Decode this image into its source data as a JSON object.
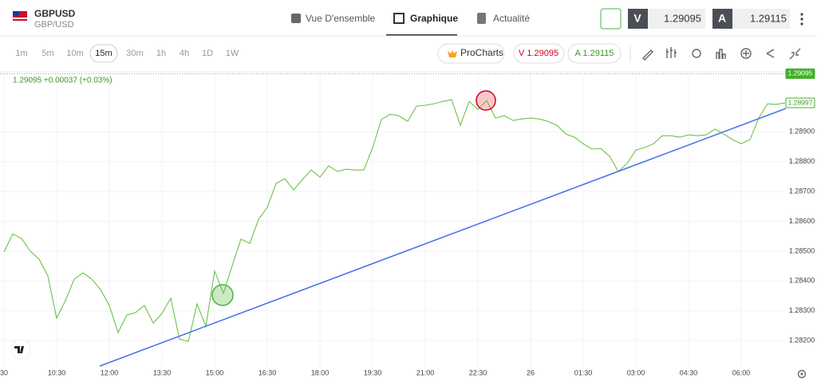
{
  "header": {
    "symbol": "GBPUSD",
    "pair": "GBP/USD",
    "tabs": [
      "Vue D'ensemble",
      "Graphique",
      "Actualité"
    ],
    "active_tab": 1,
    "sell_label": "V",
    "sell_price": "1.29095",
    "buy_label": "A",
    "buy_price": "1.29115"
  },
  "toolbar": {
    "timeframes": [
      "1m",
      "5m",
      "10m",
      "15m",
      "30m",
      "1h",
      "4h",
      "1D",
      "1W"
    ],
    "active_timeframe": 3,
    "procharts": "ProCharts",
    "sell_quote": "V 1.29095",
    "buy_quote": "A 1.29115"
  },
  "chart_data": {
    "type": "line",
    "info": "1.29095 +0.00037 (+0.03%)",
    "color": "#6cc24a",
    "categories": [
      "30",
      null,
      null,
      null,
      null,
      null,
      "10:30",
      null,
      null,
      null,
      null,
      null,
      "12:00",
      null,
      null,
      null,
      null,
      null,
      "13:30",
      null,
      null,
      null,
      null,
      null,
      "15:00",
      null,
      null,
      null,
      null,
      null,
      "16:30",
      null,
      null,
      null,
      null,
      null,
      "18:00",
      null,
      null,
      null,
      null,
      null,
      "19:30",
      null,
      null,
      null,
      null,
      null,
      "21:00",
      null,
      null,
      null,
      null,
      null,
      "22:30",
      null,
      null,
      null,
      null,
      null,
      "26",
      null,
      null,
      null,
      null,
      null,
      "01:30",
      null,
      null,
      null,
      null,
      null,
      "03:00",
      null,
      null,
      null,
      null,
      null,
      "04:30",
      null,
      null,
      null,
      null,
      null,
      "06:00",
      null,
      null,
      null,
      null,
      null
    ],
    "values": [
      1.28497,
      1.28558,
      1.28542,
      1.285,
      1.28473,
      1.28417,
      1.28275,
      1.28334,
      1.28406,
      1.28427,
      1.28406,
      1.28371,
      1.28318,
      1.28227,
      1.28286,
      1.28294,
      1.28318,
      1.28259,
      1.28291,
      1.28342,
      1.28205,
      1.28197,
      1.28323,
      1.28248,
      1.28433,
      1.28358,
      1.28451,
      1.2854,
      1.28526,
      1.28606,
      1.28647,
      1.28727,
      1.28743,
      1.28705,
      1.2874,
      1.28772,
      1.28748,
      1.28786,
      1.28767,
      1.28775,
      1.28772,
      1.28772,
      1.28847,
      1.28941,
      1.28959,
      1.28954,
      1.28935,
      1.28986,
      1.28989,
      1.28994,
      1.29002,
      1.29008,
      1.28922,
      1.29002,
      1.28975,
      1.29005,
      1.28946,
      1.28954,
      1.28938,
      1.28943,
      1.28946,
      1.28943,
      1.28935,
      1.28922,
      1.28893,
      1.28882,
      1.2886,
      1.28842,
      1.28844,
      1.28818,
      1.28767,
      1.28794,
      1.28839,
      1.28847,
      1.2886,
      1.28887,
      1.28887,
      1.28882,
      1.2889,
      1.28887,
      1.2889,
      1.28909,
      1.28893,
      1.28874,
      1.2886,
      1.28874,
      1.28946,
      1.28994,
      1.28992,
      1.28997
    ],
    "ylim": [
      1.28112,
      1.29096
    ],
    "yticks": [
      {
        "value": 1.282,
        "label": "1.28200"
      },
      {
        "value": 1.283,
        "label": "1.28300"
      },
      {
        "value": 1.284,
        "label": "1.28400"
      },
      {
        "value": 1.285,
        "label": "1.28500"
      },
      {
        "value": 1.286,
        "label": "1.28600"
      },
      {
        "value": 1.287,
        "label": "1.28700"
      },
      {
        "value": 1.288,
        "label": "1.28800"
      },
      {
        "value": 1.289,
        "label": "1.28900"
      }
    ],
    "price_tags": [
      1.29095,
      1.28997
    ],
    "grid": true
  }
}
